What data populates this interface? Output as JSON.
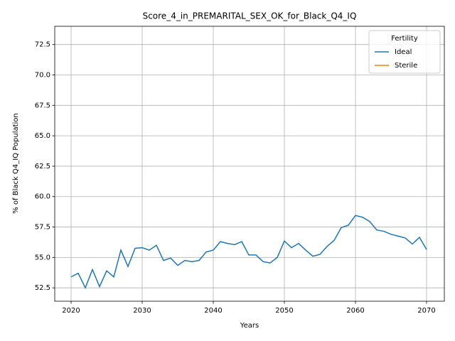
{
  "chart_data": {
    "type": "line",
    "title": "Score_4_in_PREMARITAL_SEX_OK_for_Black_Q4_IQ",
    "x_label": "Years",
    "y_label": "% of Black Q4_IQ Population",
    "x": [
      2020,
      2021,
      2022,
      2023,
      2024,
      2025,
      2026,
      2027,
      2028,
      2029,
      2030,
      2031,
      2032,
      2033,
      2034,
      2035,
      2036,
      2037,
      2038,
      2039,
      2040,
      2041,
      2042,
      2043,
      2044,
      2045,
      2046,
      2047,
      2048,
      2049,
      2050,
      2051,
      2052,
      2053,
      2054,
      2055,
      2056,
      2057,
      2058,
      2059,
      2060,
      2061,
      2062,
      2063,
      2064,
      2065,
      2066,
      2067,
      2068,
      2069,
      2070
    ],
    "series": [
      {
        "name": "Ideal",
        "color": "#1f77b4",
        "values": [
          53.4,
          53.7,
          52.5,
          54.0,
          52.6,
          53.9,
          53.4,
          55.6,
          54.25,
          55.75,
          55.8,
          55.6,
          56.0,
          54.75,
          54.95,
          54.35,
          54.75,
          54.65,
          54.75,
          55.45,
          55.6,
          56.3,
          56.15,
          56.05,
          56.3,
          55.2,
          55.2,
          54.65,
          54.55,
          55.0,
          56.35,
          55.8,
          56.15,
          55.6,
          55.1,
          55.25,
          55.9,
          56.4,
          57.45,
          57.65,
          58.45,
          58.3,
          57.95,
          57.25,
          57.15,
          56.9,
          56.75,
          56.6,
          56.1,
          56.65,
          55.65
        ]
      },
      {
        "name": "Sterile",
        "color": "#ff7f0e",
        "values": [
          null,
          null,
          null,
          null,
          null,
          null,
          null,
          null,
          null,
          null,
          null,
          null,
          null,
          null,
          null,
          null,
          null,
          null,
          null,
          null,
          null,
          null,
          null,
          null,
          null,
          null,
          null,
          null,
          null,
          null,
          null,
          null,
          null,
          null,
          null,
          null,
          null,
          null,
          null,
          null,
          null,
          null,
          null,
          null,
          null,
          null,
          null,
          null,
          null,
          null,
          null
        ]
      }
    ],
    "xlim": [
      2017.7,
      2072.5
    ],
    "xticks": [
      2020,
      2030,
      2040,
      2050,
      2060,
      2070
    ],
    "ylim": [
      51.4,
      74.0
    ],
    "yticks": [
      52.5,
      {
        "value": 55,
        "label": "55.0"
      },
      57.5,
      {
        "value": 60,
        "label": "60.0"
      },
      62.5,
      {
        "value": 65,
        "label": "65.0"
      },
      67.5,
      {
        "value": 70,
        "label": "70.0"
      },
      72.5
    ],
    "grid": true,
    "legend_title": "Fertility",
    "legend_position": "upper right"
  }
}
